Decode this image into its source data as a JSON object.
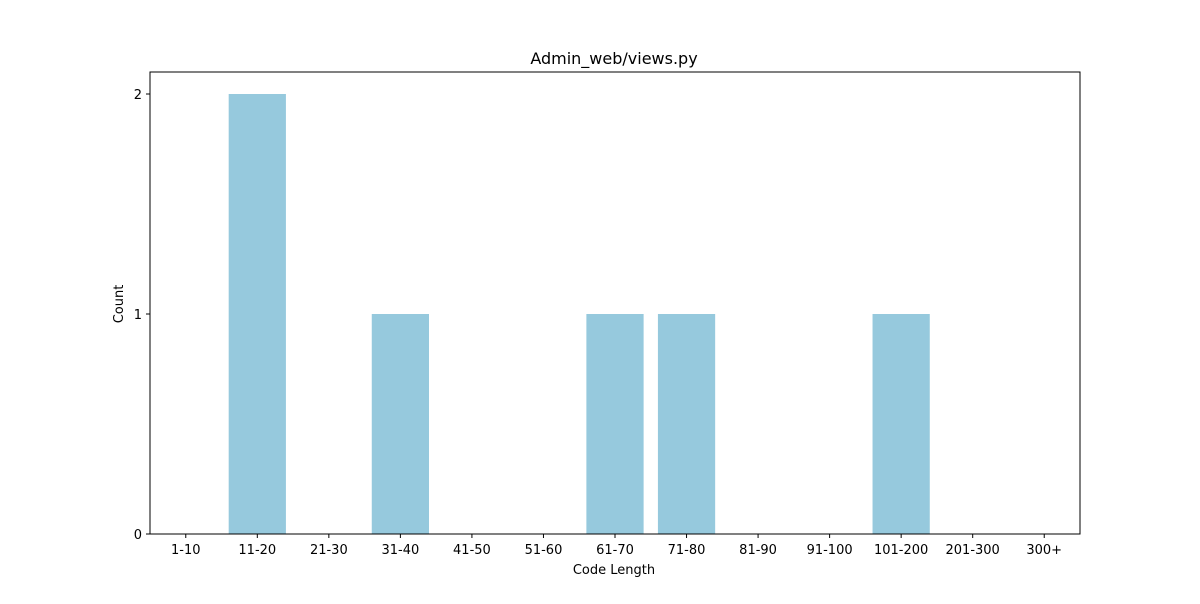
{
  "chart_data": {
    "type": "bar",
    "title": "Admin_web/views.py",
    "xlabel": "Code Length",
    "ylabel": "Count",
    "categories": [
      "1-10",
      "11-20",
      "21-30",
      "31-40",
      "41-50",
      "51-60",
      "61-70",
      "71-80",
      "81-90",
      "91-100",
      "101-200",
      "201-300",
      "300+"
    ],
    "values": [
      0,
      2,
      0,
      1,
      0,
      0,
      1,
      1,
      0,
      0,
      1,
      0,
      0
    ],
    "yticks": [
      "0",
      "1",
      "2"
    ],
    "ylim": [
      0,
      2.1
    ],
    "grid": false,
    "bar_color": "#96c9dd"
  }
}
